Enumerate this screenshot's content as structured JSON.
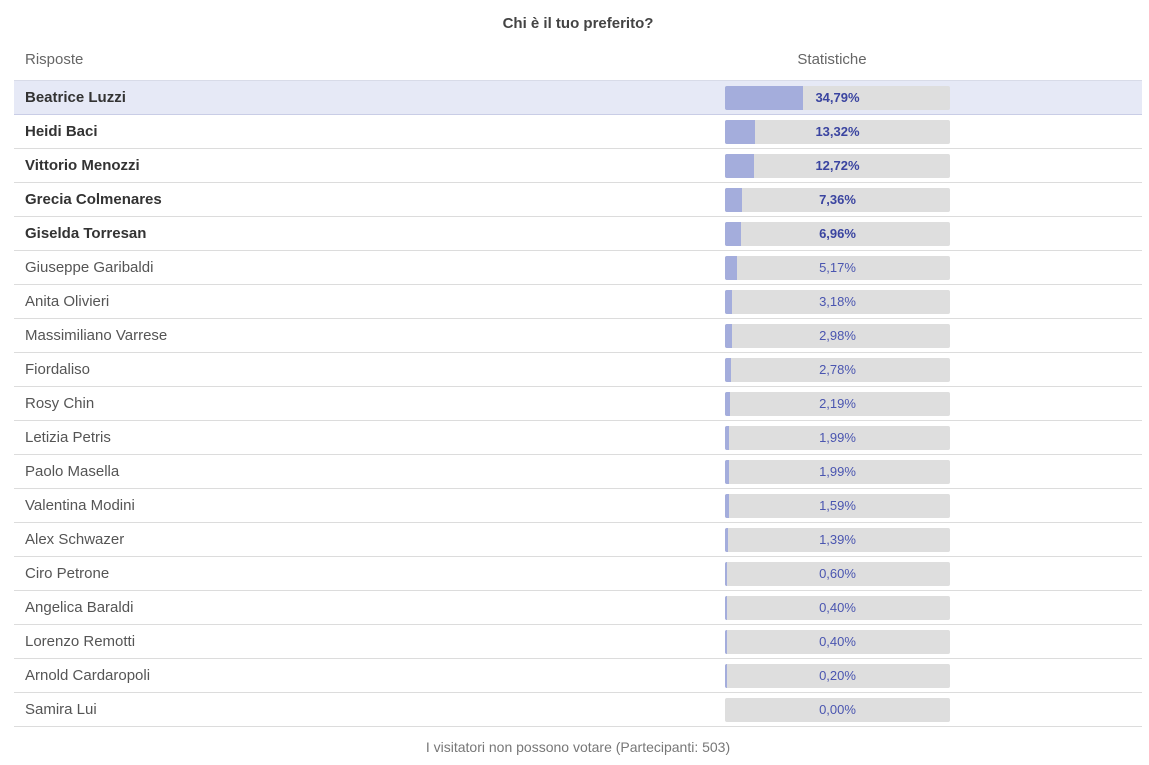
{
  "poll": {
    "title": "Chi è il tuo preferito?",
    "header": {
      "answers": "Risposte",
      "stats": "Statistiche"
    },
    "colors": {
      "bar_fill": "#a4addc",
      "bar_track": "#dedede",
      "highlight_row": "#e6e9f6",
      "percent_text": "#4a55b0"
    },
    "rows": [
      {
        "name": "Beatrice Luzzi",
        "percent": 34.79,
        "label": "34,79%",
        "top": true,
        "highlight": true
      },
      {
        "name": "Heidi Baci",
        "percent": 13.32,
        "label": "13,32%",
        "top": true,
        "highlight": false
      },
      {
        "name": "Vittorio Menozzi",
        "percent": 12.72,
        "label": "12,72%",
        "top": true,
        "highlight": false
      },
      {
        "name": "Grecia Colmenares",
        "percent": 7.36,
        "label": "7,36%",
        "top": true,
        "highlight": false
      },
      {
        "name": "Giselda Torresan",
        "percent": 6.96,
        "label": "6,96%",
        "top": true,
        "highlight": false
      },
      {
        "name": "Giuseppe Garibaldi",
        "percent": 5.17,
        "label": "5,17%",
        "top": false,
        "highlight": false
      },
      {
        "name": "Anita Olivieri",
        "percent": 3.18,
        "label": "3,18%",
        "top": false,
        "highlight": false
      },
      {
        "name": "Massimiliano Varrese",
        "percent": 2.98,
        "label": "2,98%",
        "top": false,
        "highlight": false
      },
      {
        "name": "Fiordaliso",
        "percent": 2.78,
        "label": "2,78%",
        "top": false,
        "highlight": false
      },
      {
        "name": "Rosy Chin",
        "percent": 2.19,
        "label": "2,19%",
        "top": false,
        "highlight": false
      },
      {
        "name": "Letizia Petris",
        "percent": 1.99,
        "label": "1,99%",
        "top": false,
        "highlight": false
      },
      {
        "name": "Paolo Masella",
        "percent": 1.99,
        "label": "1,99%",
        "top": false,
        "highlight": false
      },
      {
        "name": "Valentina Modini",
        "percent": 1.59,
        "label": "1,59%",
        "top": false,
        "highlight": false
      },
      {
        "name": "Alex Schwazer",
        "percent": 1.39,
        "label": "1,39%",
        "top": false,
        "highlight": false
      },
      {
        "name": "Ciro Petrone",
        "percent": 0.6,
        "label": "0,60%",
        "top": false,
        "highlight": false
      },
      {
        "name": "Angelica Baraldi",
        "percent": 0.4,
        "label": "0,40%",
        "top": false,
        "highlight": false
      },
      {
        "name": "Lorenzo Remotti",
        "percent": 0.4,
        "label": "0,40%",
        "top": false,
        "highlight": false
      },
      {
        "name": "Arnold Cardaropoli",
        "percent": 0.2,
        "label": "0,20%",
        "top": false,
        "highlight": false
      },
      {
        "name": "Samira Lui",
        "percent": 0.0,
        "label": "0,00%",
        "top": false,
        "highlight": false
      }
    ],
    "footer": "I visitatori non possono votare (Partecipanti: 503)"
  }
}
